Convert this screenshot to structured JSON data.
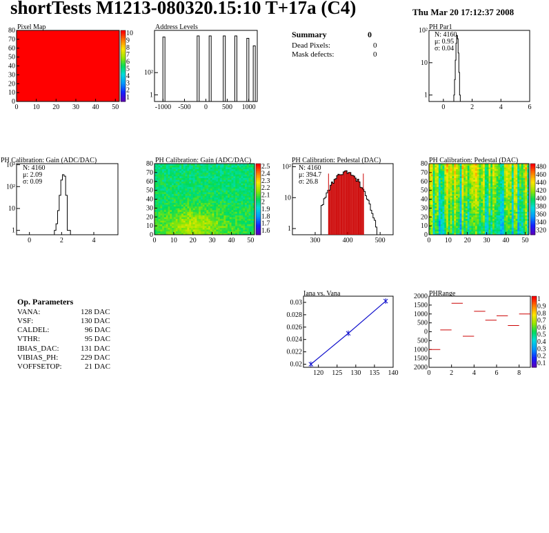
{
  "header": {
    "title": "shortTests M1213-080320.15:10 T+17a (C4)",
    "date": "Thu Mar 20 17:12:37 2008"
  },
  "summary": {
    "title": "Summary",
    "value": "0",
    "rows": [
      {
        "label": "Dead Pixels:",
        "value": "0"
      },
      {
        "label": "Mask defects:",
        "value": "0"
      }
    ]
  },
  "op_params": {
    "title": "Op. Parameters",
    "rows": [
      {
        "label": "VANA:",
        "value": "128 DAC"
      },
      {
        "label": "VSF:",
        "value": "130 DAC"
      },
      {
        "label": "CALDEL:",
        "value": "96 DAC"
      },
      {
        "label": "VTHR:",
        "value": "95 DAC"
      },
      {
        "label": "IBIAS_DAC:",
        "value": "131 DAC"
      },
      {
        "label": "VIBIAS_PH:",
        "value": "229 DAC"
      },
      {
        "label": "VOFFSETOP:",
        "value": "21 DAC"
      }
    ]
  },
  "colors": {
    "hist_line": "#000000",
    "fit_line": "#1010cc",
    "pedestal_red": "#cc0000",
    "pixel_map_fill": "#ff0000"
  },
  "chart_data": [
    {
      "id": "pixel-map",
      "type": "heatmap",
      "title": "Pixel Map",
      "x_ticks": [
        0,
        10,
        20,
        30,
        40,
        50
      ],
      "y_ticks": [
        0,
        10,
        20,
        30,
        40,
        50,
        60,
        70,
        80
      ],
      "xlim": [
        0,
        52
      ],
      "ylim": [
        0,
        80
      ],
      "z_ticks": [
        "1",
        "2",
        "3",
        "4",
        "5",
        "6",
        "7",
        "8",
        "9",
        "10"
      ],
      "uniform_value": 10
    },
    {
      "id": "address-levels",
      "type": "bar",
      "title": "Address Levels",
      "scale": "log",
      "x_ticks": [
        -1000,
        -500,
        0,
        500,
        1000
      ],
      "y_tick_labels": [
        "1",
        "10²"
      ],
      "xlim": [
        -1200,
        1200
      ],
      "peaks": [
        {
          "x": -980,
          "value": 400
        },
        {
          "x": -180,
          "value": 450
        },
        {
          "x": 100,
          "value": 450
        },
        {
          "x": 430,
          "value": 450
        },
        {
          "x": 700,
          "value": 450
        },
        {
          "x": 980,
          "value": 350
        },
        {
          "x": 1130,
          "value": 160
        }
      ]
    },
    {
      "id": "ph-par1",
      "type": "bar",
      "title": "PH Par1",
      "scale": "log",
      "x_ticks": [
        0,
        2,
        4,
        6
      ],
      "y_tick_labels": [
        "1",
        "10",
        "10²"
      ],
      "xlim": [
        -1,
        6
      ],
      "stats": [
        "N: 4160",
        "μ: 0.95",
        "σ: 0.04"
      ],
      "x": [
        0.75,
        0.8,
        0.85,
        0.9,
        0.95,
        1.0,
        1.05,
        1.1,
        1.15
      ],
      "values": [
        1,
        3,
        12,
        40,
        70,
        55,
        20,
        5,
        1
      ]
    },
    {
      "id": "gain-hist",
      "type": "bar",
      "title": "PH Calibration: Gain (ADC/DAC)",
      "scale": "log",
      "x_ticks": [
        0,
        2,
        4
      ],
      "y_tick_labels": [
        "1",
        "10",
        "10²",
        "10³"
      ],
      "xlim": [
        -0.8,
        5.5
      ],
      "stats": [
        "N: 4160",
        "μ: 2.09",
        "σ: 0.09"
      ],
      "x": [
        1.6,
        1.7,
        1.8,
        1.9,
        2.0,
        2.1,
        2.2,
        2.3,
        2.4,
        2.5
      ],
      "values": [
        1,
        2,
        8,
        40,
        200,
        350,
        300,
        40,
        1,
        1
      ]
    },
    {
      "id": "gain-map",
      "type": "heatmap",
      "title": "PH Calibration: Gain (ADC/DAC)",
      "x_ticks": [
        0,
        10,
        20,
        30,
        40,
        50
      ],
      "y_ticks": [
        0,
        10,
        20,
        30,
        40,
        50,
        60,
        70,
        80
      ],
      "xlim": [
        0,
        52
      ],
      "ylim": [
        0,
        80
      ],
      "z_ticks": [
        "1.6",
        "1.7",
        "1.8",
        "1.9",
        "2",
        "2.1",
        "2.2",
        "2.3",
        "2.4",
        "2.5"
      ]
    },
    {
      "id": "pedestal-hist",
      "type": "bar",
      "title": "PH Calibration: Pedestal (DAC)",
      "scale": "log",
      "x_ticks": [
        300,
        400,
        500
      ],
      "y_tick_labels": [
        "1",
        "10",
        "10²"
      ],
      "xlim": [
        230,
        540
      ],
      "stats": [
        "N: 4160",
        "μ: 394.7",
        "σ: 26.8"
      ],
      "mean": 394.7,
      "sigma": 26.8
    },
    {
      "id": "pedestal-map",
      "type": "heatmap",
      "title": "PH Calibration: Pedestal (DAC)",
      "x_ticks": [
        0,
        10,
        20,
        30,
        40,
        50
      ],
      "y_ticks": [
        0,
        10,
        20,
        30,
        40,
        50,
        60,
        70,
        80
      ],
      "xlim": [
        0,
        52
      ],
      "ylim": [
        0,
        80
      ],
      "z_ticks": [
        "320",
        "340",
        "360",
        "380",
        "400",
        "420",
        "440",
        "460",
        "480"
      ]
    },
    {
      "id": "iana-vana",
      "type": "line",
      "title": "Iana vs. Vana",
      "x_ticks": [
        120,
        125,
        130,
        135,
        140
      ],
      "y_ticks": [
        0.02,
        0.022,
        0.024,
        0.026,
        0.028,
        0.03
      ],
      "xlim": [
        116,
        140
      ],
      "ylim": [
        0.0195,
        0.031
      ],
      "x": [
        118,
        128,
        138
      ],
      "y": [
        0.02,
        0.025,
        0.0302
      ]
    },
    {
      "id": "ph-range",
      "type": "scatter",
      "title": "PHRange",
      "x_ticks": [
        0,
        2,
        4,
        6,
        8
      ],
      "y_ticks": [
        -2000,
        -1500,
        -1000,
        -500,
        0,
        500,
        1000,
        1500,
        2000
      ],
      "xlim": [
        0,
        9
      ],
      "ylim": [
        -2000,
        2000
      ],
      "z_ticks": [
        "0.1",
        "0.2",
        "0.3",
        "0.4",
        "0.5",
        "0.6",
        "0.7",
        "0.8",
        "0.9",
        "1"
      ],
      "x": [
        0.5,
        1.5,
        2.5,
        3.5,
        4.5,
        5.5,
        6.5,
        7.5,
        8.5
      ],
      "y": [
        -1000,
        100,
        1600,
        -250,
        1150,
        650,
        900,
        350,
        1000
      ]
    }
  ]
}
